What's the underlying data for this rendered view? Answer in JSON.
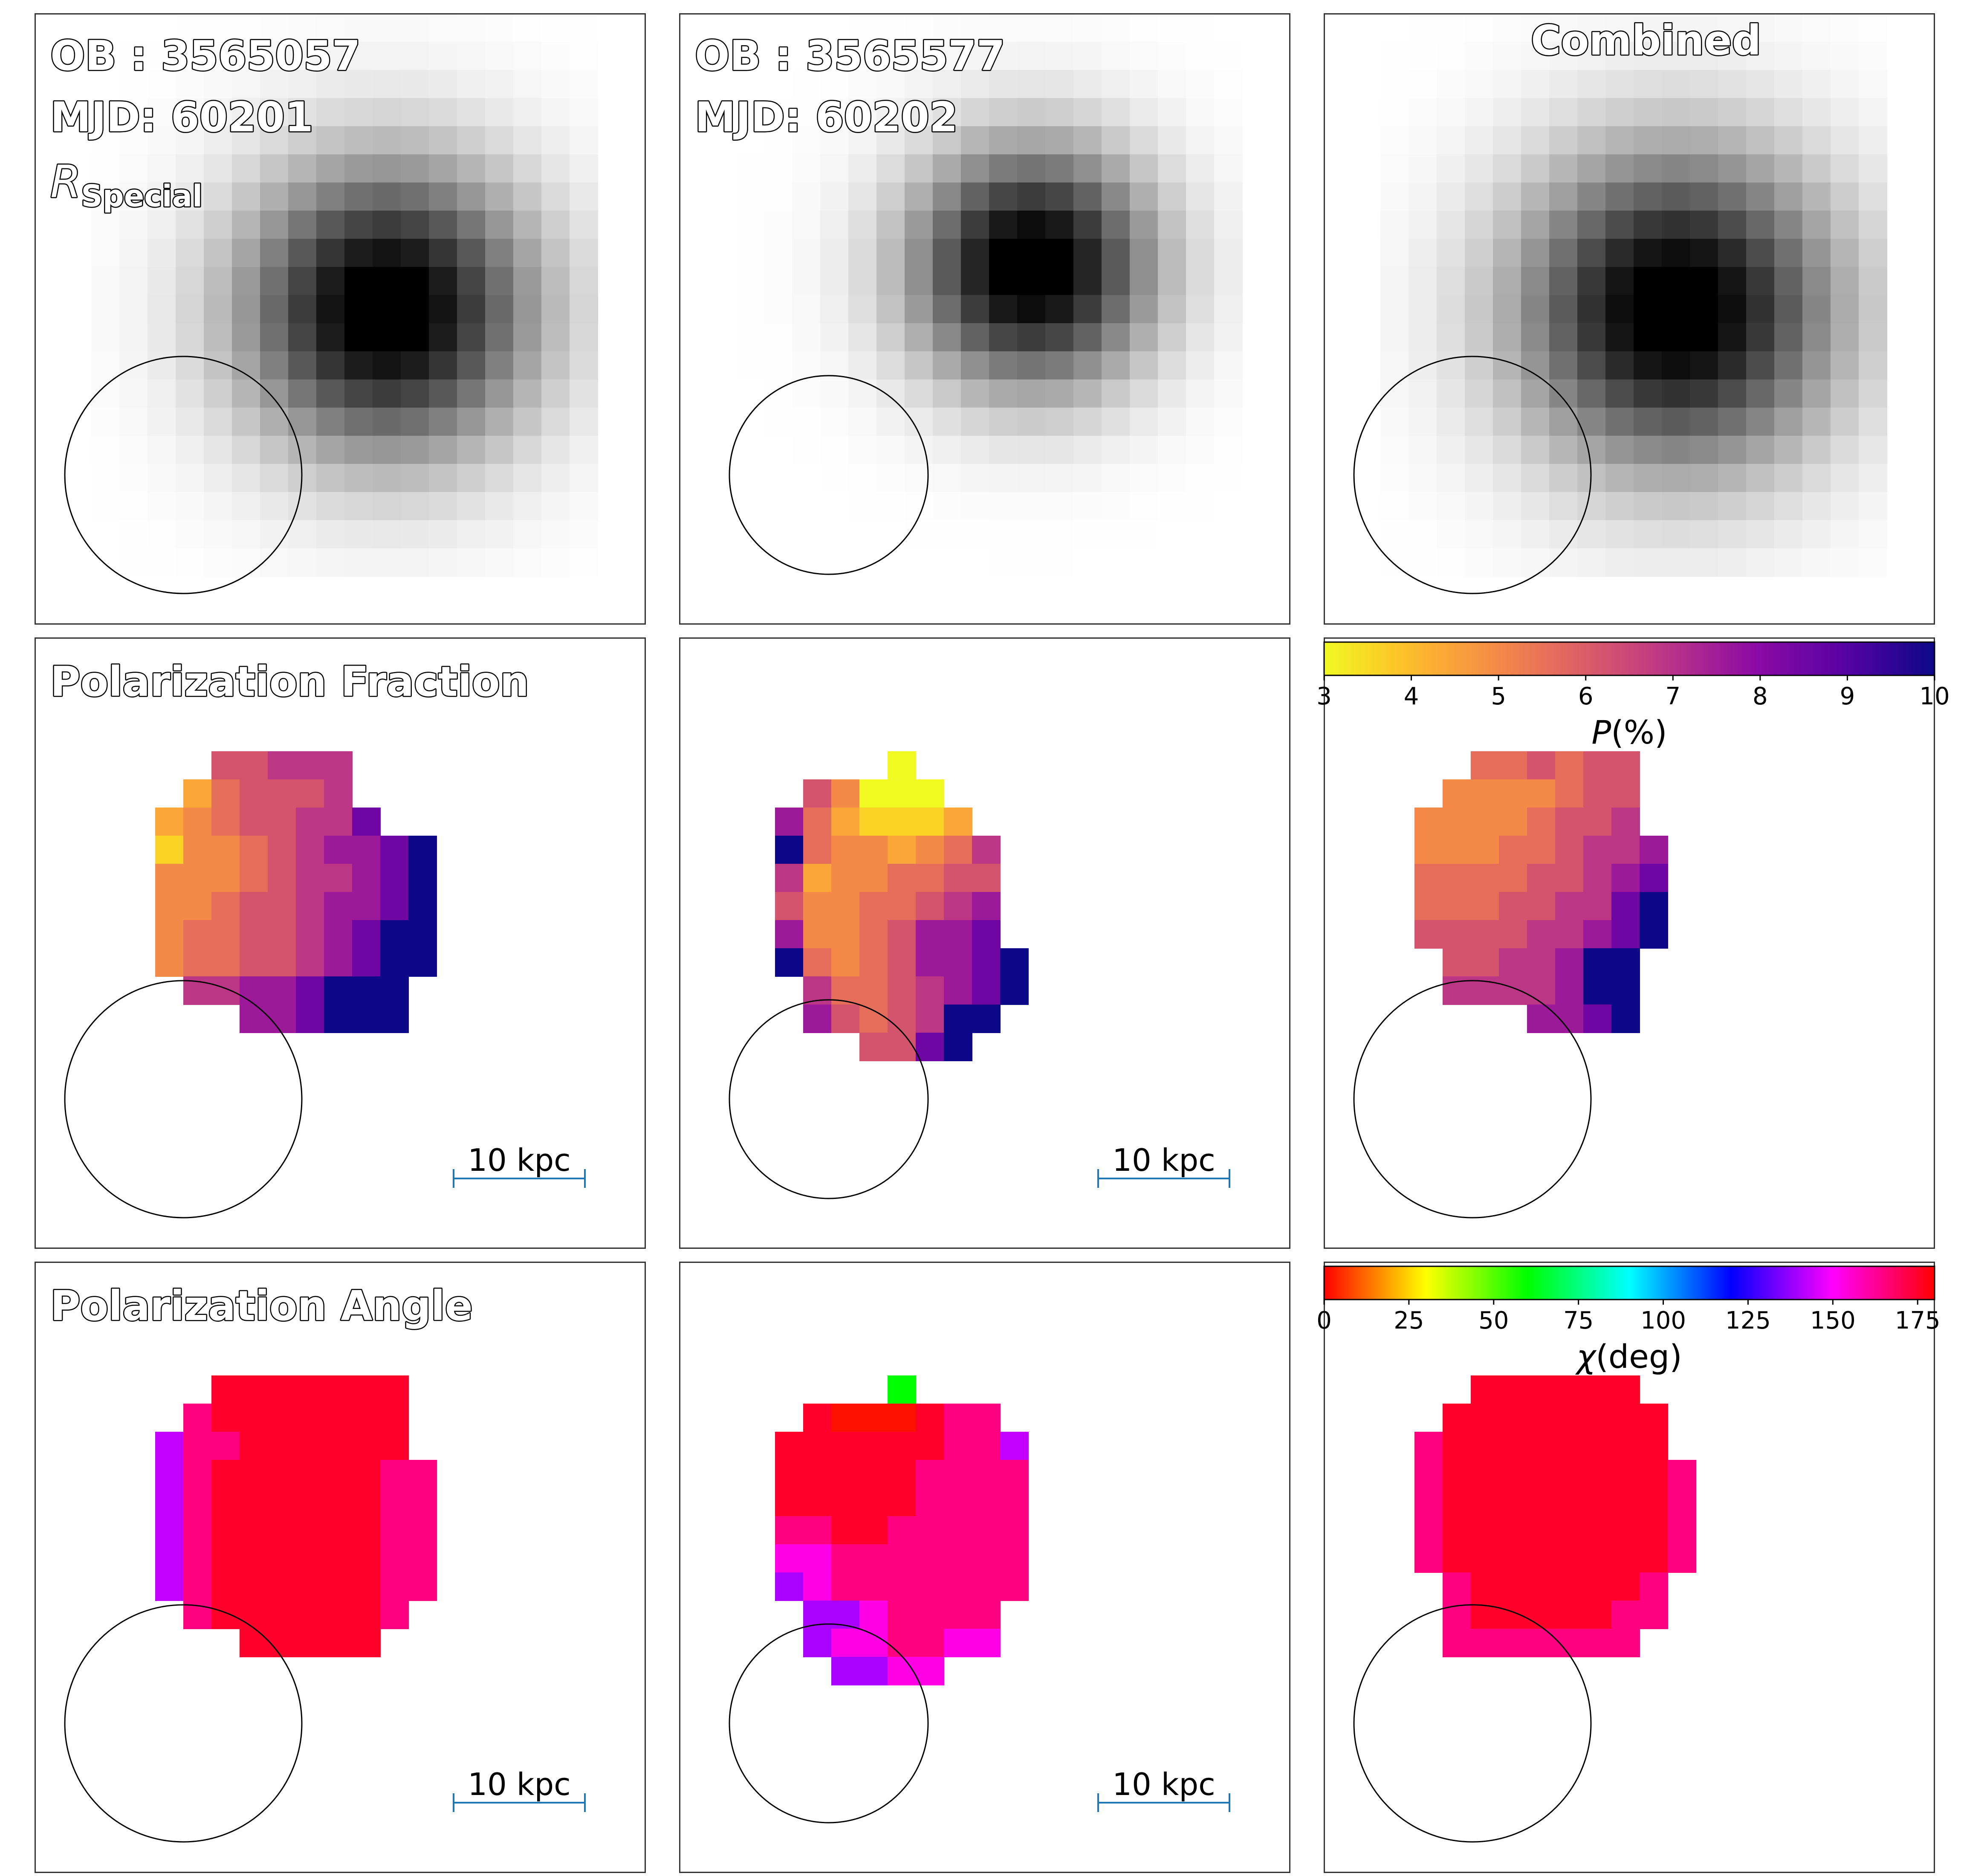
{
  "chart_data": {
    "type": "heatmap",
    "layout": "3x3 grid of image panels",
    "columns": [
      {
        "ob": "OB : 3565057",
        "mjd": "MJD: 60201",
        "band_symbol": "R",
        "band_subscript": "Special"
      },
      {
        "ob": "OB : 3565577",
        "mjd": "MJD: 60202"
      },
      {
        "title": "Combined"
      }
    ],
    "rows": [
      {
        "quantity": "intensity",
        "colormap": "gray_r",
        "title": ""
      },
      {
        "quantity": "polarization fraction",
        "colormap": "plasma_r",
        "title": "Polarization Fraction"
      },
      {
        "quantity": "polarization angle",
        "colormap": "hsv",
        "title": "Polarization Angle"
      }
    ],
    "scale_bar": {
      "label": "10 kpc",
      "color": "#1f77b4"
    },
    "colorbars": {
      "fraction": {
        "symbol": "P",
        "unit": "(%)",
        "range": [
          3,
          10
        ],
        "ticks": [
          3,
          4,
          5,
          6,
          7,
          8,
          9,
          10
        ],
        "colormap": "plasma_r"
      },
      "angle": {
        "symbol": "χ",
        "unit": "(deg)",
        "range": [
          0,
          180
        ],
        "ticks": [
          0,
          25,
          50,
          75,
          100,
          125,
          150,
          175
        ],
        "colormap": "hsv"
      }
    },
    "intensity": {
      "grid_size": 20,
      "source_1": {
        "cx": 12.0,
        "cy": 10.0,
        "sigma": 3.6
      },
      "source_2": {
        "cx": 12.0,
        "cy": 8.5,
        "sigma": 3.0
      },
      "combined": {
        "cx": 12.0,
        "cy": 10.0,
        "sigma": 3.9
      }
    },
    "maps": [
      {
        "name": "panel-1-fraction",
        "grid_size": 12,
        "pixels": [
          "....66777...",
          "...356667...",
          "..34566779..",
          "..244567889X",
          "..444567789X",
          "..445667889X",
          "..45566789XX",
          "..45566789XX",
          "...77889XXX.",
          ".....889XXX.",
          "............",
          "............"
        ]
      },
      {
        "name": "panel-1-angle",
        "grid_size": 12,
        "pixels": [
          "....nnnnnnn.",
          "...qnnnnnnn.",
          "..bqqnnnnnn.",
          "..bqnnnnnnqq",
          "..bqnnnnnnqq",
          "..bqnnnnnnqq",
          "..bqnnnnnnqq",
          "..bqnnnnnnqq",
          "...qnnnnnnq.",
          ".....nnnnn..",
          "............",
          "............"
        ]
      },
      {
        "name": "panel-2-fraction",
        "grid_size": 12,
        "pixels": [
          "......1.....",
          "...64111....",
          "..8532223...",
          "..X5443457..",
          "..73445566..",
          "..64455678..",
          "..84456889..",
          "..X5456889X.",
          "...7556789X.",
          "...86567XX..",
          ".....669X...",
          "............"
        ]
      },
      {
        "name": "panel-2-angle",
        "grid_size": 12,
        "pixels": [
          "......y.....",
          "...nrrrnqq..",
          "..nnnnnnqqb.",
          "..nnnnnqqqq.",
          "..nnnnnqqqq.",
          "..qqnnqqqqq.",
          "..mmqqqqqqq.",
          "..vmqqqqqqq.",
          "...vvmqqqq..",
          "...vmmqqmm..",
          "....vvmm....",
          "............"
        ]
      },
      {
        "name": "panel-3-fraction",
        "grid_size": 12,
        "pixels": [
          "....556566..",
          "...4444566..",
          "..44445667..",
          "..444556778.",
          "..555566789.",
          "..55566779X.",
          "..66667789X.",
          "...66778XX..",
          "...77778XX..",
          "......889X..",
          "............",
          "............"
        ]
      },
      {
        "name": "panel-3-angle",
        "grid_size": 12,
        "pixels": [
          "....nnnnnn..",
          "...nnnnnnnn.",
          "..qnnnnnnnn.",
          "..qnnnnnnnnq",
          "..qnnnnnnnnq",
          "..qnnnnnnnnq",
          "..qnnnnnnnnq",
          "...qnnnnnnq.",
          "...qnnnnnqq.",
          "...qqqqqqq..",
          "............",
          "............"
        ]
      }
    ]
  },
  "pixel_values": {
    "fraction": {
      "1": 3.0,
      "2": 3.6,
      "3": 4.4,
      "4": 5.0,
      "5": 5.6,
      "6": 6.2,
      "7": 6.9,
      "8": 7.6,
      "9": 8.5,
      "X": 10.0
    },
    "angle": {
      "r": 2,
      "y": 60,
      "b": 143,
      "v": 140,
      "m": 153,
      "q": 165,
      "n": 175
    }
  }
}
